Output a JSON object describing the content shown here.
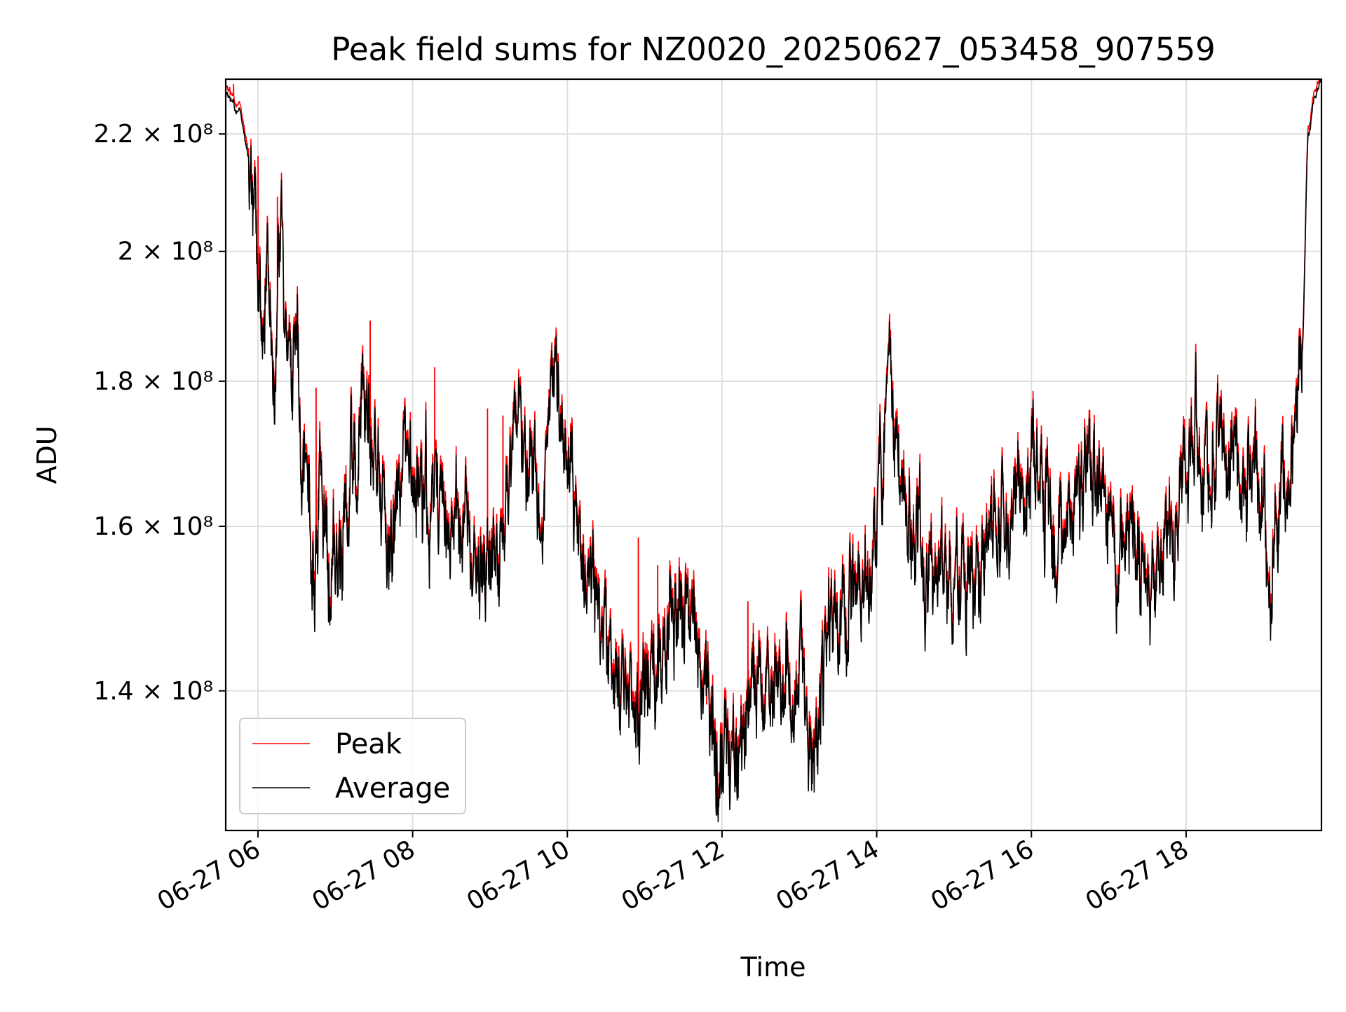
{
  "chart_data": {
    "type": "line",
    "title": "Peak field sums for NZ0020_20250627_053458_907559",
    "xlabel": "Time",
    "ylabel": "ADU",
    "x_range": [
      "2025-06-27 05:35",
      "2025-06-27 19:45"
    ],
    "ylim": [
      125000000,
      230000000
    ],
    "y_scale": "log",
    "grid": true,
    "legend_position": "lower left",
    "x_ticks": [
      {
        "t": "2025-06-27 06:00",
        "label": "06-27 06"
      },
      {
        "t": "2025-06-27 08:00",
        "label": "06-27 08"
      },
      {
        "t": "2025-06-27 10:00",
        "label": "06-27 10"
      },
      {
        "t": "2025-06-27 12:00",
        "label": "06-27 12"
      },
      {
        "t": "2025-06-27 14:00",
        "label": "06-27 14"
      },
      {
        "t": "2025-06-27 16:00",
        "label": "06-27 16"
      },
      {
        "t": "2025-06-27 18:00",
        "label": "06-27 18"
      }
    ],
    "y_ticks": [
      {
        "v": 140000000,
        "label": "1.4 × 10⁸"
      },
      {
        "v": 160000000,
        "label": "1.6 × 10⁸"
      },
      {
        "v": 180000000,
        "label": "1.8 × 10⁸"
      },
      {
        "v": 200000000,
        "label": "2 × 10⁸"
      },
      {
        "v": 220000000,
        "label": "2.2 × 10⁸"
      }
    ],
    "series": [
      {
        "name": "Peak",
        "color": "#ff0000",
        "offset": 1200000,
        "spikes": [
          [
            "2025-06-27 05:38",
            228500000
          ],
          [
            "2025-06-27 05:41",
            229000000
          ],
          [
            "2025-06-27 06:00",
            216000000
          ],
          [
            "2025-06-27 06:15",
            209000000
          ],
          [
            "2025-06-27 06:45",
            179000000
          ],
          [
            "2025-06-27 07:27",
            189000000
          ],
          [
            "2025-06-27 08:17",
            182000000
          ],
          [
            "2025-06-27 08:58",
            176000000
          ],
          [
            "2025-06-27 09:10",
            175000000
          ],
          [
            "2025-06-27 09:50",
            184000000
          ],
          [
            "2025-06-27 10:55",
            158500000
          ],
          [
            "2025-06-27 11:10",
            155000000
          ],
          [
            "2025-06-27 11:35",
            152000000
          ],
          [
            "2025-06-27 11:48",
            138500000
          ],
          [
            "2025-06-27 12:20",
            150500000
          ]
        ]
      },
      {
        "name": "Average",
        "color": "#000000",
        "offset": 0,
        "spikes": []
      }
    ],
    "average_keypoints": [
      [
        "2025-06-27 05:35",
        227000000
      ],
      [
        "2025-06-27 05:45",
        224000000
      ],
      [
        "2025-06-27 05:53",
        216000000
      ],
      [
        "2025-06-27 06:00",
        197000000
      ],
      [
        "2025-06-27 06:03",
        185000000
      ],
      [
        "2025-06-27 06:07",
        207000000
      ],
      [
        "2025-06-27 06:13",
        182000000
      ],
      [
        "2025-06-27 06:17",
        204000000
      ],
      [
        "2025-06-27 06:25",
        178000000
      ],
      [
        "2025-06-27 06:30",
        186000000
      ],
      [
        "2025-06-27 06:37",
        168000000
      ],
      [
        "2025-06-27 06:43",
        160000000
      ],
      [
        "2025-06-27 06:48",
        170000000
      ],
      [
        "2025-06-27 06:55",
        153000000
      ],
      [
        "2025-06-27 07:05",
        158000000
      ],
      [
        "2025-06-27 07:15",
        168000000
      ],
      [
        "2025-06-27 07:22",
        178000000
      ],
      [
        "2025-06-27 07:30",
        169000000
      ],
      [
        "2025-06-27 07:42",
        159000000
      ],
      [
        "2025-06-27 07:55",
        166000000
      ],
      [
        "2025-06-27 08:10",
        162000000
      ],
      [
        "2025-06-27 08:25",
        165000000
      ],
      [
        "2025-06-27 08:40",
        158000000
      ],
      [
        "2025-06-27 08:55",
        153000000
      ],
      [
        "2025-06-27 09:10",
        160000000
      ],
      [
        "2025-06-27 09:20",
        176000000
      ],
      [
        "2025-06-27 09:30",
        166000000
      ],
      [
        "2025-06-27 09:40",
        160000000
      ],
      [
        "2025-06-27 09:50",
        182000000
      ],
      [
        "2025-06-27 09:57",
        172000000
      ],
      [
        "2025-06-27 10:03",
        170000000
      ],
      [
        "2025-06-27 10:08",
        158000000
      ],
      [
        "2025-06-27 10:20",
        150000000
      ],
      [
        "2025-06-27 10:35",
        143000000
      ],
      [
        "2025-06-27 10:50",
        136000000
      ],
      [
        "2025-06-27 11:05",
        142000000
      ],
      [
        "2025-06-27 11:20",
        148000000
      ],
      [
        "2025-06-27 11:35",
        150000000
      ],
      [
        "2025-06-27 11:45",
        140000000
      ],
      [
        "2025-06-27 11:58",
        130000000
      ],
      [
        "2025-06-27 12:10",
        132000000
      ],
      [
        "2025-06-27 12:25",
        138000000
      ],
      [
        "2025-06-27 12:40",
        142000000
      ],
      [
        "2025-06-27 12:55",
        140000000
      ],
      [
        "2025-06-27 13:10",
        135000000
      ],
      [
        "2025-06-27 13:25",
        146000000
      ],
      [
        "2025-06-27 13:40",
        150000000
      ],
      [
        "2025-06-27 13:55",
        152000000
      ],
      [
        "2025-06-27 14:08",
        176000000
      ],
      [
        "2025-06-27 14:20",
        165000000
      ],
      [
        "2025-06-27 14:35",
        158000000
      ],
      [
        "2025-06-27 14:50",
        150000000
      ],
      [
        "2025-06-27 15:05",
        155000000
      ],
      [
        "2025-06-27 15:20",
        151000000
      ],
      [
        "2025-06-27 15:35",
        159000000
      ],
      [
        "2025-06-27 15:50",
        163000000
      ],
      [
        "2025-06-27 16:05",
        167000000
      ],
      [
        "2025-06-27 16:20",
        157000000
      ],
      [
        "2025-06-27 16:35",
        163000000
      ],
      [
        "2025-06-27 16:50",
        168000000
      ],
      [
        "2025-06-27 17:05",
        160000000
      ],
      [
        "2025-06-27 17:20",
        156000000
      ],
      [
        "2025-06-27 17:35",
        152000000
      ],
      [
        "2025-06-27 17:50",
        160000000
      ],
      [
        "2025-06-27 18:05",
        173000000
      ],
      [
        "2025-06-27 18:20",
        170000000
      ],
      [
        "2025-06-27 18:35",
        167000000
      ],
      [
        "2025-06-27 18:50",
        168000000
      ],
      [
        "2025-06-27 19:05",
        157000000
      ],
      [
        "2025-06-27 19:15",
        161000000
      ],
      [
        "2025-06-27 19:25",
        168000000
      ],
      [
        "2025-06-27 19:30",
        185000000
      ],
      [
        "2025-06-27 19:35",
        220000000
      ],
      [
        "2025-06-27 19:40",
        227000000
      ],
      [
        "2025-06-27 19:45",
        230000000
      ]
    ]
  }
}
